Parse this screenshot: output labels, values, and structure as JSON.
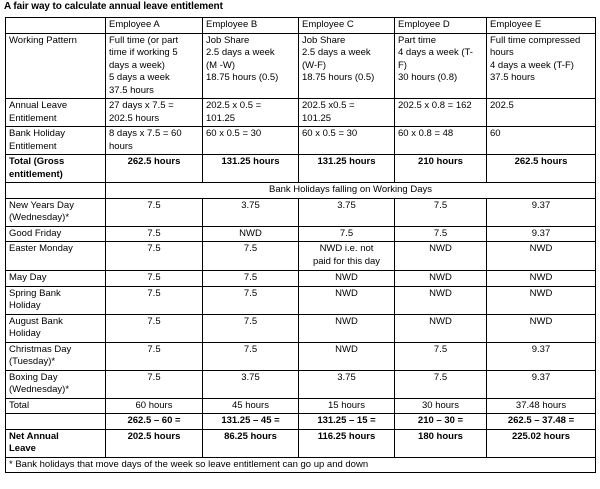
{
  "title": "A fair way to calculate annual leave entitlement",
  "headers": [
    "",
    "Employee A",
    "Employee B",
    "Employee C",
    "Employee D",
    "Employee E"
  ],
  "working_pattern": {
    "label": "Working Pattern",
    "cells": [
      [
        "Full time (or part",
        "time if working 5",
        "days a week)",
        "5 days a week",
        "37.5 hours"
      ],
      [
        "Job Share",
        "2.5 days a week",
        "(M -W)",
        "18.75 hours (0.5)"
      ],
      [
        "Job Share",
        "2.5 days a week",
        "(W-F)",
        "18.75 hours (0.5)"
      ],
      [
        "Part time",
        "4 days a week (T-",
        "F)",
        "30 hours (0.8)"
      ],
      [
        "Full time compressed",
        "hours",
        "4 days a week (T-F)",
        "37.5 hours"
      ]
    ]
  },
  "annual_leave": {
    "label": [
      "Annual Leave",
      "Entitlement"
    ],
    "cells": [
      [
        "27 days x 7.5 =",
        "202.5 hours"
      ],
      [
        "202.5 x 0.5 =",
        "101.25"
      ],
      [
        "202.5 x0.5 =",
        "101.25"
      ],
      [
        "202.5 x 0.8 = 162"
      ],
      [
        "202.5"
      ]
    ]
  },
  "bank_holiday_entitlement": {
    "label": [
      "Bank Holiday",
      "Entitlement"
    ],
    "cells": [
      [
        "8 days x 7.5 = 60",
        "hours"
      ],
      [
        "60 x 0.5 = 30"
      ],
      [
        "60 x 0.5 = 30"
      ],
      [
        "60 x 0.8 = 48"
      ],
      [
        "60"
      ]
    ]
  },
  "total_gross": {
    "label": [
      "Total (Gross",
      "entitlement)"
    ],
    "values": [
      "262.5 hours",
      "131.25 hours",
      "131.25 hours",
      "210 hours",
      "262.5 hours"
    ]
  },
  "section_heading": "Bank Holidays falling on Working Days",
  "holidays": [
    {
      "label": [
        "New Years Day",
        "(Wednesday)*"
      ],
      "values": [
        "7.5",
        "3.75",
        "3.75",
        "7.5",
        "9.37"
      ]
    },
    {
      "label": [
        "Good Friday"
      ],
      "values": [
        "7.5",
        "NWD",
        "7.5",
        "7.5",
        "9.37"
      ]
    },
    {
      "label": [
        "Easter Monday"
      ],
      "values": [
        "7.5",
        "7.5",
        "NWD i.e. not|paid for this day",
        "NWD",
        "NWD"
      ]
    },
    {
      "label": [
        "May Day"
      ],
      "values": [
        "7.5",
        "7.5",
        "NWD",
        "NWD",
        "NWD"
      ]
    },
    {
      "label": [
        "Spring Bank",
        "Holiday"
      ],
      "values": [
        "7.5",
        "7.5",
        "NWD",
        "NWD",
        "NWD"
      ]
    },
    {
      "label": [
        "August Bank",
        "Holiday"
      ],
      "values": [
        "7.5",
        "7.5",
        "NWD",
        "NWD",
        "NWD"
      ]
    },
    {
      "label": [
        "Christmas Day",
        "(Tuesday)*"
      ],
      "values": [
        "7.5",
        "7.5",
        "NWD",
        "7.5",
        "9.37"
      ]
    },
    {
      "label": [
        "Boxing Day",
        "(Wednesday)*"
      ],
      "values": [
        "7.5",
        "3.75",
        "3.75",
        "7.5",
        "9.37"
      ]
    }
  ],
  "total_row": {
    "label": "Total",
    "values": [
      "60 hours",
      "45 hours",
      "15 hours",
      "30 hours",
      "37.48 hours"
    ],
    "calcs": [
      "262.5 – 60 =",
      "131.25 – 45 =",
      "131.25 – 15 =",
      "210 – 30 =",
      "262.5 – 37.48 ="
    ]
  },
  "net_annual": {
    "label": [
      "Net Annual",
      "Leave"
    ],
    "values": [
      "202.5 hours",
      "86.25 hours",
      "116.25 hours",
      "180 hours",
      "225.02 hours"
    ]
  },
  "footnote": "* Bank holidays that move days of the week so leave entitlement can go up and down"
}
